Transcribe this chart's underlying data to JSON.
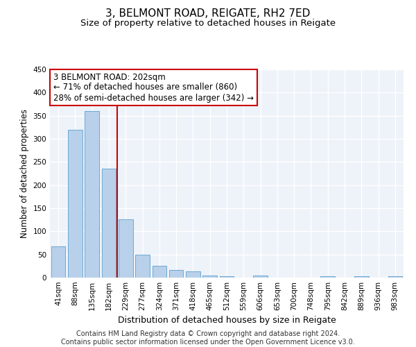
{
  "title1": "3, BELMONT ROAD, REIGATE, RH2 7ED",
  "title2": "Size of property relative to detached houses in Reigate",
  "xlabel": "Distribution of detached houses by size in Reigate",
  "ylabel": "Number of detached properties",
  "bar_labels": [
    "41sqm",
    "88sqm",
    "135sqm",
    "182sqm",
    "229sqm",
    "277sqm",
    "324sqm",
    "371sqm",
    "418sqm",
    "465sqm",
    "512sqm",
    "559sqm",
    "606sqm",
    "653sqm",
    "700sqm",
    "748sqm",
    "795sqm",
    "842sqm",
    "889sqm",
    "936sqm",
    "983sqm"
  ],
  "bar_values": [
    67,
    320,
    360,
    235,
    126,
    50,
    25,
    17,
    14,
    5,
    3,
    0,
    4,
    0,
    0,
    0,
    3,
    0,
    3,
    0,
    3
  ],
  "bar_color": "#b8d0ea",
  "bar_edgecolor": "#6aaad4",
  "vline_x": 3.5,
  "vline_color": "#cc0000",
  "annotation_line1": "3 BELMONT ROAD: 202sqm",
  "annotation_line2": "← 71% of detached houses are smaller (860)",
  "annotation_line3": "28% of semi-detached houses are larger (342) →",
  "annotation_box_color": "#cc0000",
  "ylim": [
    0,
    450
  ],
  "yticks": [
    0,
    50,
    100,
    150,
    200,
    250,
    300,
    350,
    400,
    450
  ],
  "footnote": "Contains HM Land Registry data © Crown copyright and database right 2024.\nContains public sector information licensed under the Open Government Licence v3.0.",
  "bg_color": "#eef2f9",
  "grid_color": "#ffffff",
  "title1_fontsize": 11,
  "title2_fontsize": 9.5,
  "xlabel_fontsize": 9,
  "ylabel_fontsize": 8.5,
  "tick_fontsize": 7.5,
  "footnote_fontsize": 7,
  "annotation_fontsize": 8.5
}
